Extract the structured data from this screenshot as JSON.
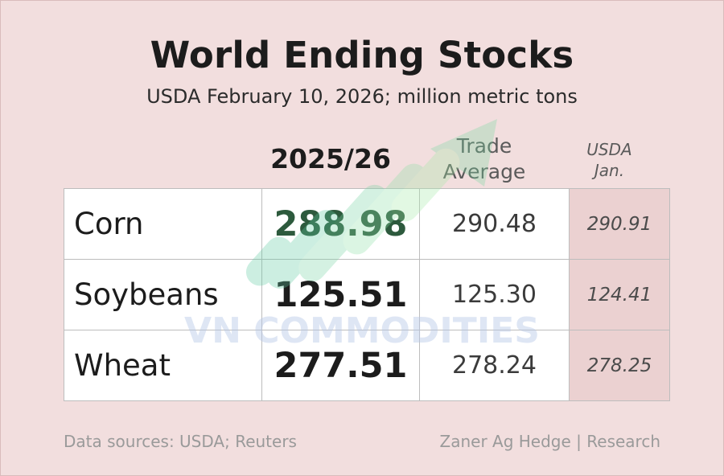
{
  "chart_data": {
    "type": "table",
    "title": "World Ending Stocks",
    "subtitle": "USDA February 10, 2026; million metric tons",
    "columns": [
      {
        "key": "main",
        "lines": [
          "2025/26"
        ]
      },
      {
        "key": "trade",
        "lines": [
          "Trade",
          "Average"
        ]
      },
      {
        "key": "jan",
        "lines": [
          "USDA",
          "Jan."
        ]
      }
    ],
    "rows": [
      {
        "commodity": "Corn",
        "main": "288.98",
        "trade": "290.48",
        "jan": "290.91"
      },
      {
        "commodity": "Soybeans",
        "main": "125.51",
        "trade": "125.30",
        "jan": "124.41"
      },
      {
        "commodity": "Wheat",
        "main": "277.51",
        "trade": "278.24",
        "jan": "278.25"
      }
    ],
    "highlight_color": "#2d5a3d"
  },
  "footer": {
    "source": "Data sources: USDA; Reuters",
    "credit": "Zaner Ag Hedge | Research"
  },
  "watermark": {
    "text": "VN COMMODITIES",
    "icon": "rising-arrow-logo-icon"
  },
  "colors": {
    "background": "#f2dede",
    "jan_column": "#ebd1d1"
  }
}
